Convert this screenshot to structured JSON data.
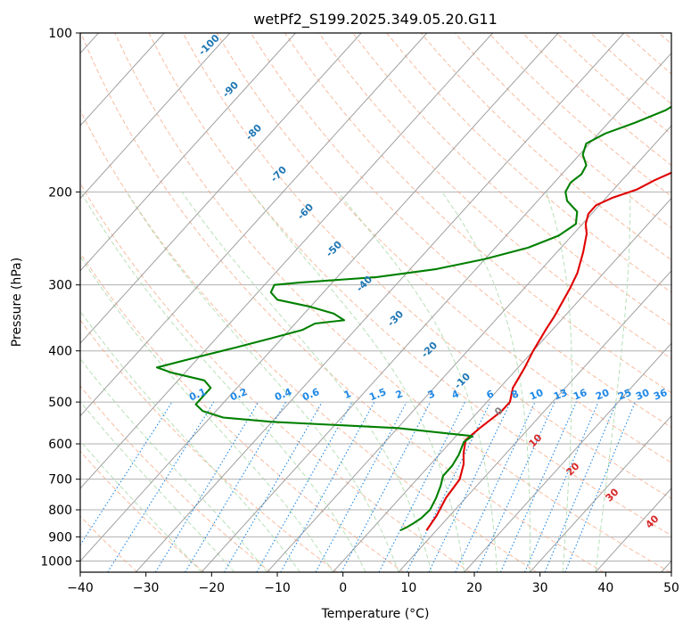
{
  "chart_data": {
    "type": "line",
    "title": "wetPf2_S199.2025.349.05.20.G11",
    "xlabel": "Temperature (°C)",
    "ylabel": "Pressure (hPa)",
    "xlim": [
      -40,
      50
    ],
    "ylim": [
      1050,
      100
    ],
    "y_scale": "log",
    "skew": true,
    "grid": true,
    "x_ticks": [
      "−40",
      "−30",
      "−20",
      "−10",
      "0",
      "10",
      "20",
      "30",
      "40",
      "50"
    ],
    "y_ticks": [
      "100",
      "200",
      "300",
      "400",
      "500",
      "600",
      "700",
      "800",
      "900",
      "1000"
    ],
    "series": [
      {
        "color": "#e00000",
        "points": [
          [
            8.5,
            875
          ],
          [
            8.0,
            820
          ],
          [
            7.0,
            760
          ],
          [
            6.5,
            700
          ],
          [
            5.0,
            655
          ],
          [
            3.5,
            625
          ],
          [
            2.0,
            590
          ],
          [
            2.5,
            560
          ],
          [
            3.5,
            520
          ],
          [
            3.5,
            500
          ],
          [
            2.0,
            470
          ],
          [
            1.0,
            430
          ],
          [
            0.0,
            400
          ],
          [
            -1.0,
            365
          ],
          [
            -1.5,
            345
          ],
          [
            -3.0,
            305
          ],
          [
            -4.0,
            285
          ],
          [
            -6.0,
            260
          ],
          [
            -8.0,
            240
          ],
          [
            -9.5,
            230
          ],
          [
            -10.5,
            220
          ],
          [
            -10.5,
            212
          ],
          [
            -9.0,
            205
          ],
          [
            -6.5,
            198
          ],
          [
            -5.0,
            190
          ],
          [
            -2.5,
            180
          ],
          [
            0.5,
            170
          ],
          [
            3.0,
            165
          ],
          [
            7.0,
            155
          ],
          [
            10.0,
            145
          ],
          [
            13.0,
            137
          ],
          [
            15.5,
            128
          ],
          [
            19.5,
            120
          ],
          [
            24.0,
            112
          ],
          [
            28.5,
            105
          ],
          [
            32.0,
            100
          ]
        ]
      },
      {
        "color": "#008000",
        "points": [
          [
            4.5,
            875
          ],
          [
            5.0,
            865
          ],
          [
            5.5,
            850
          ],
          [
            6.0,
            830
          ],
          [
            6.2,
            800
          ],
          [
            5.5,
            760
          ],
          [
            4.5,
            720
          ],
          [
            3.5,
            690
          ],
          [
            3.5,
            660
          ],
          [
            3.0,
            630
          ],
          [
            2.0,
            595
          ],
          [
            2.5,
            580
          ],
          [
            -10.0,
            560
          ],
          [
            -30.0,
            545
          ],
          [
            -38.0,
            535
          ],
          [
            -42.0,
            520
          ],
          [
            -44.0,
            505
          ],
          [
            -44.0,
            490
          ],
          [
            -44.0,
            470
          ],
          [
            -46.0,
            455
          ],
          [
            -52.0,
            440
          ],
          [
            -55.0,
            430
          ],
          [
            -50.0,
            410
          ],
          [
            -46.0,
            395
          ],
          [
            -42.0,
            380
          ],
          [
            -38.0,
            365
          ],
          [
            -37.0,
            355
          ],
          [
            -33.0,
            350
          ],
          [
            -35.5,
            340
          ],
          [
            -40.0,
            330
          ],
          [
            -46.0,
            320
          ],
          [
            -48.0,
            310
          ],
          [
            -48.5,
            300
          ],
          [
            -45.0,
            297
          ],
          [
            -34.0,
            290
          ],
          [
            -26.0,
            280
          ],
          [
            -20.0,
            268
          ],
          [
            -15.0,
            255
          ],
          [
            -12.0,
            242
          ],
          [
            -11.0,
            230
          ],
          [
            -12.5,
            218
          ],
          [
            -15.5,
            208
          ],
          [
            -17.0,
            200
          ],
          [
            -17.5,
            192
          ],
          [
            -17.0,
            185
          ],
          [
            -17.5,
            178
          ],
          [
            -19.5,
            170
          ],
          [
            -20.5,
            162
          ],
          [
            -19.0,
            155
          ],
          [
            -16.0,
            148
          ],
          [
            -13.0,
            140
          ],
          [
            -11.5,
            132
          ],
          [
            -10.5,
            125
          ],
          [
            -9.5,
            118
          ],
          [
            -7.0,
            110
          ],
          [
            -5.0,
            103
          ],
          [
            -4.0,
            100
          ]
        ]
      }
    ],
    "isotherm_labels": [
      "-100",
      "-90",
      "-80",
      "-70",
      "-60",
      "-50",
      "-40",
      "-30",
      "-20",
      "-10",
      "0",
      "10",
      "20",
      "30",
      "40"
    ],
    "mixing_ratio_labels": [
      "0.1",
      "0.2",
      "0.4",
      "0.6",
      "1",
      "1.5",
      "2",
      "3",
      "4",
      "6",
      "8",
      "10",
      "13",
      "16",
      "20",
      "25",
      "30",
      "36"
    ],
    "colors": {
      "temperature": "#e00000",
      "dewpoint": "#008000",
      "isotherm_label": "#1f77b4",
      "mixing_ratio": "#1e88e5",
      "dry_adiabat": "#f4a582",
      "moist_adiabat": "#a6d8a6",
      "warm_label": "#d62728",
      "zero_label": "#7f7f7f"
    }
  }
}
